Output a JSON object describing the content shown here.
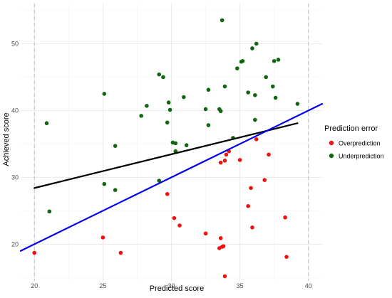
{
  "chart_data": {
    "type": "scatter",
    "xlabel": "Predicted score",
    "ylabel": "Achieved score",
    "xlim": [
      19,
      41
    ],
    "ylim": [
      14.5,
      56
    ],
    "xticks": [
      20,
      25,
      30,
      35,
      40
    ],
    "yticks": [
      20,
      30,
      40,
      50
    ],
    "grid": true,
    "vlines": {
      "x": [
        20,
        40
      ],
      "style": "dashed",
      "color": "#bdbdbd"
    },
    "legend": {
      "title": "Prediction error",
      "placement": "right",
      "entries": [
        {
          "label": "Overprediction",
          "color": "#ee1111"
        },
        {
          "label": "Underprediction",
          "color": "#116611"
        }
      ]
    },
    "series": [
      {
        "name": "Overprediction",
        "color": "#ee1111",
        "points": [
          [
            20.0,
            18.7
          ],
          [
            25.0,
            21.0
          ],
          [
            26.3,
            18.7
          ],
          [
            29.7,
            27.5
          ],
          [
            30.2,
            23.9
          ],
          [
            30.6,
            22.8
          ],
          [
            32.5,
            21.6
          ],
          [
            33.5,
            19.4
          ],
          [
            33.6,
            20.9
          ],
          [
            33.7,
            19.6
          ],
          [
            33.8,
            19.7
          ],
          [
            33.9,
            15.2
          ],
          [
            33.6,
            32.2
          ],
          [
            33.9,
            32.5
          ],
          [
            34.0,
            33.4
          ],
          [
            34.2,
            33.9
          ],
          [
            35.0,
            32.6
          ],
          [
            35.6,
            25.7
          ],
          [
            35.8,
            28.4
          ],
          [
            35.9,
            22.5
          ],
          [
            36.2,
            35.7
          ],
          [
            36.8,
            29.6
          ],
          [
            37.1,
            33.4
          ],
          [
            38.3,
            24.0
          ],
          [
            38.4,
            18.1
          ]
        ]
      },
      {
        "name": "Underprediction",
        "color": "#116611",
        "points": [
          [
            20.9,
            38.1
          ],
          [
            21.1,
            24.9
          ],
          [
            25.1,
            42.5
          ],
          [
            25.1,
            29.0
          ],
          [
            25.9,
            34.7
          ],
          [
            25.9,
            28.1
          ],
          [
            27.8,
            39.2
          ],
          [
            28.2,
            40.7
          ],
          [
            29.1,
            45.4
          ],
          [
            29.1,
            29.5
          ],
          [
            29.4,
            45.0
          ],
          [
            29.7,
            38.2
          ],
          [
            29.8,
            41.2
          ],
          [
            29.9,
            40.1
          ],
          [
            30.1,
            35.2
          ],
          [
            30.3,
            35.1
          ],
          [
            30.3,
            33.9
          ],
          [
            30.9,
            42.0
          ],
          [
            31.1,
            34.8
          ],
          [
            32.5,
            40.2
          ],
          [
            32.7,
            43.1
          ],
          [
            32.7,
            37.8
          ],
          [
            33.5,
            40.2
          ],
          [
            33.6,
            39.9
          ],
          [
            33.7,
            53.5
          ],
          [
            33.9,
            43.6
          ],
          [
            34.5,
            35.9
          ],
          [
            34.8,
            46.3
          ],
          [
            35.1,
            47.3
          ],
          [
            35.2,
            47.4
          ],
          [
            35.6,
            42.7
          ],
          [
            35.9,
            49.3
          ],
          [
            36.1,
            38.6
          ],
          [
            36.1,
            42.3
          ],
          [
            36.2,
            50.0
          ],
          [
            36.9,
            45.0
          ],
          [
            37.4,
            43.6
          ],
          [
            37.5,
            47.4
          ],
          [
            37.6,
            41.9
          ],
          [
            37.8,
            47.6
          ],
          [
            39.2,
            41.0
          ]
        ]
      }
    ],
    "lines": [
      {
        "name": "fitted",
        "color": "#000000",
        "x": [
          20,
          39.2
        ],
        "y": [
          28.4,
          38.1
        ]
      },
      {
        "name": "identity",
        "color": "#0000ee",
        "x": [
          19,
          41
        ],
        "y": [
          19,
          41
        ]
      }
    ]
  }
}
